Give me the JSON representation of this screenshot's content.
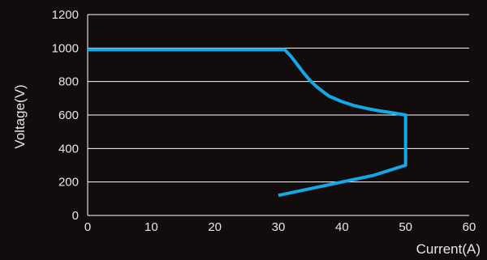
{
  "chart_data": {
    "type": "line",
    "title": "",
    "xlabel": "Current(A)",
    "ylabel": "Voltage(V)",
    "xlim": [
      0,
      60
    ],
    "ylim": [
      0,
      1200
    ],
    "x_ticks": [
      "0",
      "10",
      "20",
      "30",
      "40",
      "50",
      "60"
    ],
    "y_ticks": [
      "0",
      "200",
      "400",
      "600",
      "800",
      "1000",
      "1200"
    ],
    "grid": "horizontal",
    "colors": {
      "background": "#120d0c",
      "grid": "#ffffff",
      "series": "#12a9e8",
      "text": "#e6e6e6"
    },
    "series": [
      {
        "points": [
          [
            0,
            990
          ],
          [
            31,
            990
          ],
          [
            32,
            950
          ],
          [
            33,
            900
          ],
          [
            34,
            850
          ],
          [
            35,
            805
          ],
          [
            36,
            770
          ],
          [
            37,
            740
          ],
          [
            38,
            712
          ],
          [
            40,
            680
          ],
          [
            42,
            655
          ],
          [
            44,
            638
          ],
          [
            46,
            624
          ],
          [
            48,
            613
          ],
          [
            50,
            600
          ],
          [
            50,
            300
          ],
          [
            45,
            240
          ],
          [
            40,
            200
          ],
          [
            35,
            160
          ],
          [
            30,
            120
          ]
        ]
      }
    ]
  }
}
